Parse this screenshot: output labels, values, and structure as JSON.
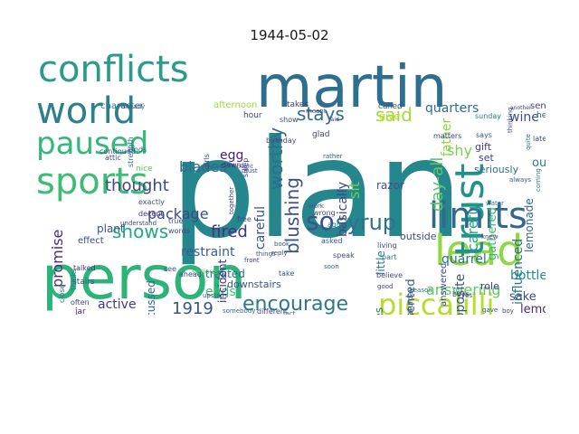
{
  "title": "1944-05-02",
  "words": [
    {
      "text": "plan",
      "color": "#26868d"
    },
    {
      "text": "person",
      "color": "#2db37a"
    },
    {
      "text": "martin",
      "color": "#2e6e8e"
    },
    {
      "text": "conflicts",
      "color": "#2a9a89"
    },
    {
      "text": "world",
      "color": "#2c7f8e"
    },
    {
      "text": "paused",
      "color": "#35b779"
    },
    {
      "text": "sports",
      "color": "#3ebc73"
    },
    {
      "text": "lead",
      "color": "#8fd744"
    },
    {
      "text": "trust",
      "color": "#21918c"
    },
    {
      "text": "limits",
      "color": "#31688e"
    },
    {
      "text": "so",
      "color": "#3b528b"
    },
    {
      "text": "syrup",
      "color": "#2c728e"
    },
    {
      "text": "piccalilli",
      "color": "#b5de2b"
    },
    {
      "text": "encourage",
      "color": "#2a788e"
    },
    {
      "text": "stays",
      "color": "#2e6f8e"
    },
    {
      "text": "said",
      "color": "#a0da39"
    },
    {
      "text": "worthy",
      "color": "#2f6c8e"
    },
    {
      "text": "shows",
      "color": "#22a884"
    },
    {
      "text": "blushing",
      "color": "#3b528b"
    },
    {
      "text": "thought",
      "color": "#404688"
    },
    {
      "text": "promise",
      "color": "#472d7b"
    },
    {
      "text": "fired",
      "color": "#46337f"
    },
    {
      "text": "package",
      "color": "#3e4989"
    },
    {
      "text": "blades",
      "color": "#31688e"
    },
    {
      "text": "1919",
      "color": "#3b528b"
    },
    {
      "text": "quarrel",
      "color": "#2d708e"
    },
    {
      "text": "day-all",
      "color": "#5ec962"
    },
    {
      "text": "careful",
      "color": "#20a386"
    },
    {
      "text": "influenced",
      "color": "#2c728e"
    },
    {
      "text": "answering",
      "color": "#5ec962"
    },
    {
      "text": "restraint",
      "color": "#355f8d"
    },
    {
      "text": "ends",
      "color": "#3dbc74"
    },
    {
      "text": "active",
      "color": "#453781"
    },
    {
      "text": "quarters",
      "color": "#2e6e8e"
    },
    {
      "text": "wine",
      "color": "#3e4a89"
    },
    {
      "text": "shy",
      "color": "#7ad151"
    },
    {
      "text": "outdoors",
      "color": "#27808e"
    },
    {
      "text": "lemonade",
      "color": "#33638d"
    },
    {
      "text": "gathered",
      "color": "#38b977"
    },
    {
      "text": "bottle",
      "color": "#228d8d"
    },
    {
      "text": "sake",
      "color": "#3e4989"
    },
    {
      "text": "lemon",
      "color": "#472c7a"
    },
    {
      "text": "razor",
      "color": "#3b528b"
    },
    {
      "text": "basically",
      "color": "#414487"
    },
    {
      "text": "sit",
      "color": "#6ccd5a"
    },
    {
      "text": "little",
      "color": "#2a788e"
    },
    {
      "text": "opposite",
      "color": "#3c4f8a"
    },
    {
      "text": "presented",
      "color": "#32658e"
    },
    {
      "text": "activities",
      "color": "#2c728e"
    },
    {
      "text": "discussed",
      "color": "#2e6e8e"
    },
    {
      "text": "treated",
      "color": "#2d708e"
    },
    {
      "text": "plant",
      "color": "#3b528b"
    },
    {
      "text": "sensitive",
      "color": "#2a788e"
    },
    {
      "text": "incident",
      "color": "#482979"
    },
    {
      "text": "careful",
      "color": "#3a548c"
    },
    {
      "text": "egg",
      "color": "#481f70"
    },
    {
      "text": "downstairs",
      "color": "#3b528b"
    },
    {
      "text": "father",
      "color": "#8bd646"
    },
    {
      "text": "gift",
      "color": "#433e85"
    },
    {
      "text": "set",
      "color": "#3f4788"
    },
    {
      "text": "seriously",
      "color": "#2d708e"
    },
    {
      "text": "outside",
      "color": "#3f4889"
    },
    {
      "text": "role",
      "color": "#453882"
    },
    {
      "text": "answered",
      "color": "#3e4a89"
    },
    {
      "text": "character",
      "color": "#2a788e"
    },
    {
      "text": "afternoon",
      "color": "#9dd93b"
    },
    {
      "text": "takes",
      "color": "#414487"
    },
    {
      "text": "called",
      "color": "#3b528b"
    },
    {
      "text": "give",
      "color": "#b5de2b"
    },
    {
      "text": "sensible",
      "color": "#404688"
    },
    {
      "text": "sunday",
      "color": "#2a788e"
    },
    {
      "text": "matters",
      "color": "#414487"
    },
    {
      "text": "says",
      "color": "#3b528b"
    },
    {
      "text": "help",
      "color": "#33638d"
    },
    {
      "text": "later",
      "color": "#404688"
    },
    {
      "text": "effect",
      "color": "#3e4989"
    },
    {
      "text": "talked",
      "color": "#453781"
    },
    {
      "text": "stairs",
      "color": "#3b528b"
    },
    {
      "text": "often",
      "color": "#414487"
    },
    {
      "text": "jar",
      "color": "#472d7b"
    },
    {
      "text": "kinds",
      "color": "#2a788e"
    },
    {
      "text": "nice",
      "color": "#5ec962"
    },
    {
      "text": "hour",
      "color": "#3e4989"
    },
    {
      "text": "birthday",
      "color": "#3f4788"
    },
    {
      "text": "dawns",
      "color": "#482475"
    },
    {
      "text": "exactly",
      "color": "#3b528b"
    },
    {
      "text": "decent",
      "color": "#453781"
    },
    {
      "text": "understand",
      "color": "#3e4989"
    },
    {
      "text": "ahead",
      "color": "#404688"
    },
    {
      "text": "upstairs",
      "color": "#3b528b"
    },
    {
      "text": "somebody",
      "color": "#2e6e8e"
    },
    {
      "text": "different",
      "color": "#404688"
    },
    {
      "text": "fact",
      "color": "#3b528b"
    },
    {
      "text": "wrong",
      "color": "#404688"
    },
    {
      "text": "agreed",
      "color": "#2a788e"
    },
    {
      "text": "asked",
      "color": "#3b528b"
    },
    {
      "text": "speak",
      "color": "#3e4989"
    },
    {
      "text": "soon",
      "color": "#3b528b"
    },
    {
      "text": "living",
      "color": "#404688"
    },
    {
      "text": "part",
      "color": "#2a788e"
    },
    {
      "text": "believe",
      "color": "#3e4989"
    },
    {
      "text": "glad",
      "color": "#404688"
    },
    {
      "text": "free",
      "color": "#414487"
    },
    {
      "text": "together",
      "color": "#3e4989"
    },
    {
      "text": "serious",
      "color": "#5ec962"
    },
    {
      "text": "take",
      "color": "#3b528b"
    },
    {
      "text": "book",
      "color": "#3b528b"
    },
    {
      "text": "thinks",
      "color": "#2a788e"
    },
    {
      "text": "words",
      "color": "#404688"
    },
    {
      "text": "true",
      "color": "#3b528b"
    },
    {
      "text": "close",
      "color": "#2a788e"
    },
    {
      "text": "saturday",
      "color": "#3e4989"
    },
    {
      "text": "boys",
      "color": "#404688"
    },
    {
      "text": "yes",
      "color": "#3b528b"
    },
    {
      "text": "knew",
      "color": "#453781"
    },
    {
      "text": "water",
      "color": "#2a788e"
    },
    {
      "text": "gave",
      "color": "#3b528b"
    },
    {
      "text": "boy",
      "color": "#414487"
    },
    {
      "text": "thinking",
      "color": "#3e4989"
    },
    {
      "text": "quite",
      "color": "#2a788e"
    },
    {
      "text": "always",
      "color": "#3b528b"
    },
    {
      "text": "strength",
      "color": "#2a788e"
    },
    {
      "text": "continued",
      "color": "#3b528b"
    },
    {
      "text": "attic",
      "color": "#404688"
    },
    {
      "text": "already",
      "color": "#3b528b"
    },
    {
      "text": "another",
      "color": "#404688"
    },
    {
      "text": "whether",
      "color": "#3b528b"
    },
    {
      "text": "coming",
      "color": "#2a788e"
    },
    {
      "text": "show",
      "color": "#3e4989"
    },
    {
      "text": "see",
      "color": "#3b528b"
    },
    {
      "text": "sleep",
      "color": "#3e4989"
    },
    {
      "text": "front",
      "color": "#414487"
    },
    {
      "text": "things",
      "color": "#3b528b"
    },
    {
      "text": "good",
      "color": "#414487"
    },
    {
      "text": "rather",
      "color": "#3b528b"
    },
    {
      "text": "reason",
      "color": "#2a788e"
    },
    {
      "text": "must",
      "color": "#3e4989"
    },
    {
      "text": "work",
      "color": "#3b528b"
    },
    {
      "text": "girls",
      "color": "#3e4989"
    },
    {
      "text": "meant",
      "color": "#414487"
    },
    {
      "text": "laid",
      "color": "#414487"
    },
    {
      "text": "thought",
      "color": "#3b528b"
    },
    {
      "text": "reply",
      "color": "#404688"
    }
  ]
}
